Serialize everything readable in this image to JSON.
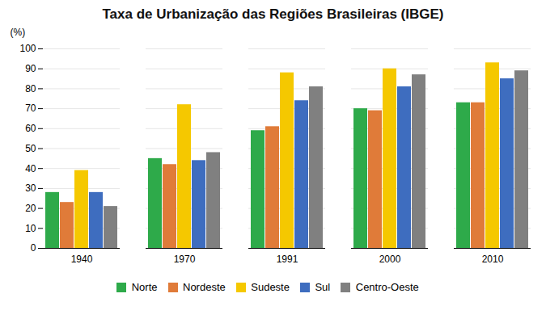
{
  "chart_data": {
    "type": "bar",
    "title": "Taxa de Urbanização das Regiões Brasileiras (IBGE)",
    "ylabel": "(%)",
    "categories": [
      "1940",
      "1970",
      "1991",
      "2000",
      "2010"
    ],
    "series": [
      {
        "name": "Norte",
        "color": "#2eaa4a",
        "values": [
          28,
          45,
          59,
          70,
          73
        ]
      },
      {
        "name": "Nordeste",
        "color": "#e07b39",
        "values": [
          23,
          42,
          61,
          69,
          73
        ]
      },
      {
        "name": "Sudeste",
        "color": "#f5c800",
        "values": [
          39,
          72,
          88,
          90,
          93
        ]
      },
      {
        "name": "Sul",
        "color": "#3e6dbf",
        "values": [
          28,
          44,
          74,
          81,
          85
        ]
      },
      {
        "name": "Centro-Oeste",
        "color": "#808080",
        "values": [
          21,
          48,
          81,
          87,
          89
        ]
      }
    ],
    "ylim": [
      0,
      100
    ],
    "yticks": [
      0,
      10,
      20,
      30,
      40,
      50,
      60,
      70,
      80,
      90,
      100
    ],
    "grid": true,
    "legend": "bottom"
  }
}
